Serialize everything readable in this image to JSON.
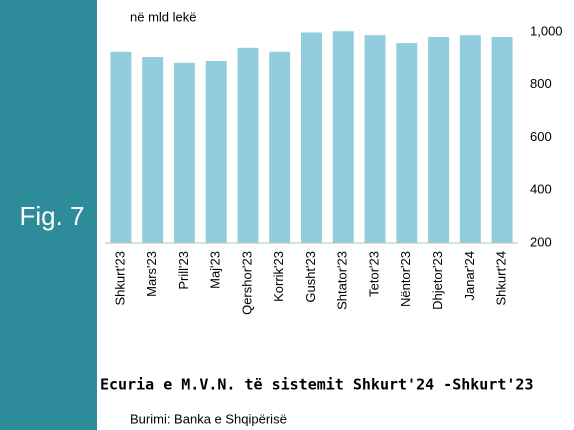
{
  "chart_data": {
    "type": "bar",
    "figure_label": "Fig. 7",
    "title": "Ecuria e M.V.N. të sistemit Shkurt'24 -Shkurt'23",
    "source": "Burimi: Banka e Shqipërisë",
    "y_label": "në mld lekë",
    "categories": [
      "Shkurt'23",
      "Mars'23",
      "Prill'23",
      "Maj'23",
      "Qershor'23",
      "Korrik'23",
      "Gusht'23",
      "Shtator'23",
      "Tetor'23",
      "Nëntor'23",
      "Dhjetor'23",
      "Janar'24",
      "Shkurt'24"
    ],
    "values": [
      925,
      905,
      883,
      890,
      940,
      925,
      998,
      1003,
      988,
      958,
      981,
      988,
      981
    ],
    "color": "#92cddd",
    "ylim": [
      200,
      1000
    ],
    "yticks": [
      200,
      400,
      600,
      800,
      {
        "value": 1000,
        "label": "1,000"
      }
    ],
    "grid": false
  }
}
